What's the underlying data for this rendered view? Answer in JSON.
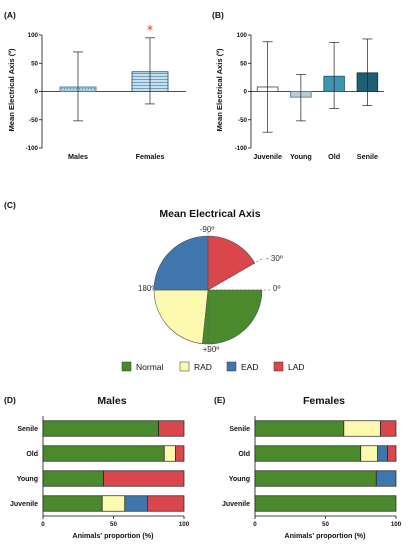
{
  "chart_data": [
    {
      "panel": "(A)",
      "type": "bar",
      "ylabel": "Mean Electrical Axis (º)",
      "ylim": [
        -100,
        100
      ],
      "yticks": [
        "100",
        "50",
        "0",
        "-50",
        "-100"
      ],
      "categories": [
        "Males",
        "Females"
      ],
      "values": [
        8,
        35
      ],
      "error_low": [
        -52,
        -22
      ],
      "error_high": [
        70,
        95
      ],
      "annotation": "*"
    },
    {
      "panel": "(B)",
      "type": "bar",
      "ylabel": "Mean Electrical Axis (º)",
      "ylim": [
        -100,
        100
      ],
      "yticks": [
        "100",
        "50",
        "0",
        "-50",
        "-100"
      ],
      "categories": [
        "Juvenile",
        "Young",
        "Old",
        "Senile"
      ],
      "values": [
        8,
        -10,
        27,
        33
      ],
      "error_low": [
        -72,
        -52,
        -30,
        -25
      ],
      "error_high": [
        88,
        30,
        87,
        93
      ]
    },
    {
      "panel": "(C)",
      "type": "pie",
      "title": "Mean Electrical Axis",
      "angle_labels": [
        "-90º",
        "- 30º",
        "0º",
        "+90º",
        "180º"
      ],
      "legend": [
        "Normal",
        "RAD",
        "EAD",
        "LAD"
      ],
      "slices": [
        {
          "name": "Normal",
          "start_deg": 0,
          "end_deg": 96,
          "color": "#4a8a2c"
        },
        {
          "name": "RAD",
          "start_deg": 96,
          "end_deg": 180,
          "color": "#fdfab0"
        },
        {
          "name": "EAD",
          "start_deg": 180,
          "end_deg": 270,
          "color": "#3f77ad"
        },
        {
          "name": "LAD",
          "start_deg": 270,
          "end_deg": 330,
          "color": "#d9464b"
        }
      ]
    },
    {
      "panel": "(D)",
      "type": "bar",
      "orientation": "horizontal-stacked",
      "title": "Males",
      "xlabel": "Animals' proportion (%)",
      "xlim": [
        0,
        100
      ],
      "xticks": [
        "0",
        "50",
        "100"
      ],
      "categories": [
        "Senile",
        "Old",
        "Young",
        "Juvenile"
      ],
      "series": [
        {
          "name": "Normal",
          "values": [
            82,
            86,
            43,
            42
          ]
        },
        {
          "name": "RAD",
          "values": [
            0,
            8,
            0,
            16
          ]
        },
        {
          "name": "EAD",
          "values": [
            0,
            0,
            0,
            16
          ]
        },
        {
          "name": "LAD",
          "values": [
            18,
            6,
            57,
            26
          ]
        }
      ]
    },
    {
      "panel": "(E)",
      "type": "bar",
      "orientation": "horizontal-stacked",
      "title": "Females",
      "xlabel": "Animals' proportion (%)",
      "xlim": [
        0,
        100
      ],
      "xticks": [
        "0",
        "50",
        "100"
      ],
      "categories": [
        "Senile",
        "Old",
        "Young",
        "Juvenile"
      ],
      "series": [
        {
          "name": "Normal",
          "values": [
            63,
            75,
            86,
            100
          ]
        },
        {
          "name": "RAD",
          "values": [
            26,
            12,
            0,
            0
          ]
        },
        {
          "name": "EAD",
          "values": [
            0,
            7,
            14,
            0
          ]
        },
        {
          "name": "LAD",
          "values": [
            11,
            6,
            0,
            0
          ]
        }
      ]
    }
  ],
  "colors": {
    "Normal": "#4a8a2c",
    "RAD": "#fdfab0",
    "EAD": "#3f77ad",
    "LAD": "#d9464b",
    "panelA_males": "#94bdd3",
    "panelA_females": "#bcd9e8",
    "panelB": [
      "#ffffff",
      "#b8ccd8",
      "#3e95ad",
      "#1f5f73"
    ]
  }
}
